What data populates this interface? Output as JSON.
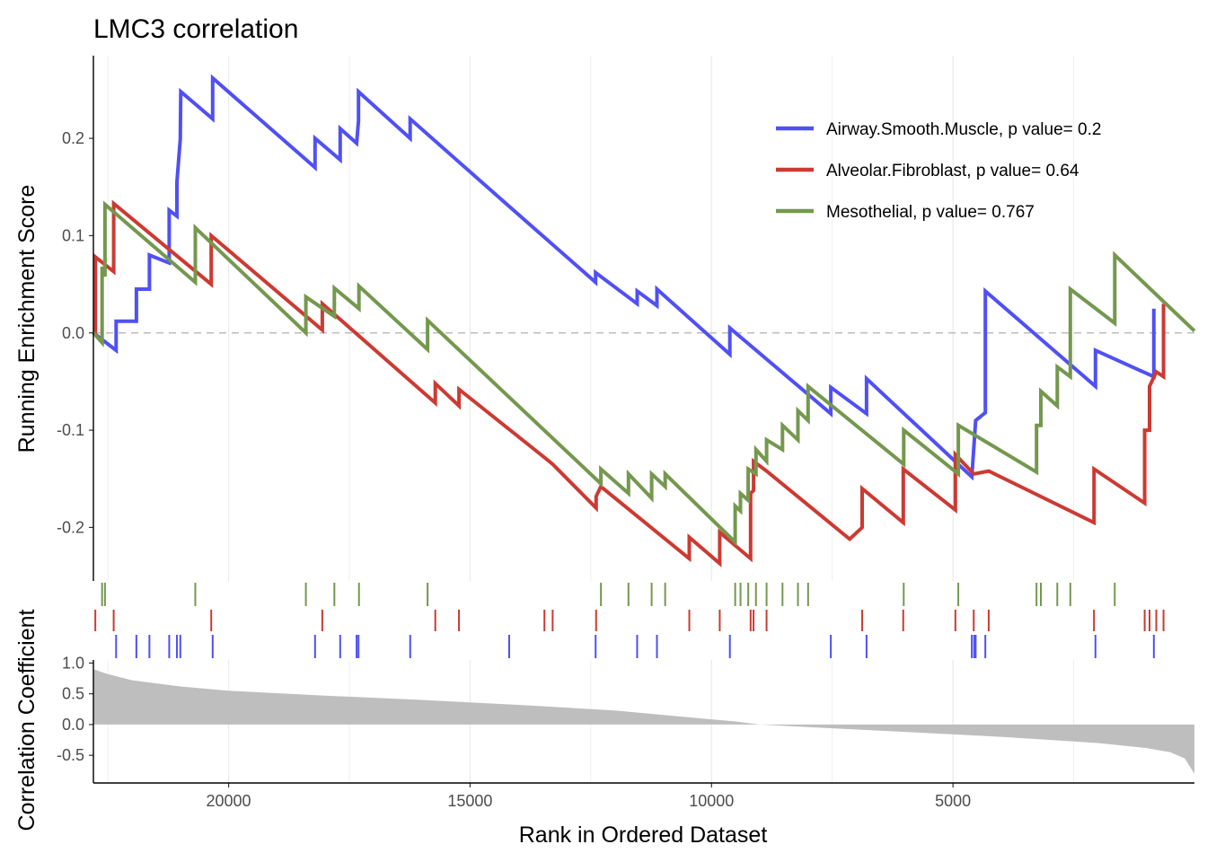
{
  "chart_data": {
    "type": "line",
    "title": "LMC3 correlation",
    "xlabel": "Rank in Ordered Dataset",
    "ylabel": "Running Enrichment Score",
    "ylabel2": "Correlation Coefficient",
    "xlim": [
      22800,
      0
    ],
    "ylim": [
      -0.255,
      0.285
    ],
    "ylim2": [
      -0.95,
      1.05
    ],
    "x_ticks": [
      {
        "value": 20000,
        "label": "20000"
      },
      {
        "value": 15000,
        "label": "15000"
      },
      {
        "value": 10000,
        "label": "10000"
      },
      {
        "value": 5000,
        "label": "5000"
      }
    ],
    "y_ticks": [
      {
        "value": 0.2,
        "label": "0.2"
      },
      {
        "value": 0.1,
        "label": "0.1"
      },
      {
        "value": 0.0,
        "label": "0.0"
      },
      {
        "value": -0.1,
        "label": "-0.1"
      },
      {
        "value": -0.2,
        "label": "-0.2"
      }
    ],
    "y2_ticks": [
      {
        "value": 1.0,
        "label": "1.0"
      },
      {
        "value": 0.5,
        "label": "0.5"
      },
      {
        "value": 0.0,
        "label": "0.0"
      },
      {
        "value": -0.5,
        "label": "-0.5"
      }
    ],
    "grid": true,
    "legend_position": "top-right",
    "zero_line": 0,
    "series": [
      {
        "name": "Airway.Smooth.Muscle, p value= 0.2",
        "color": "#5050F5",
        "hits": [
          22330,
          21910,
          21640,
          21230,
          21070,
          21000,
          20330,
          18210,
          17690,
          17350,
          17310,
          16240,
          14190,
          12400,
          11540,
          11130,
          9620,
          7530,
          6790,
          4610,
          4560,
          4530,
          4330,
          2050,
          840
        ],
        "values": [
          [
            22800,
            0
          ],
          [
            22330,
            -0.018
          ],
          [
            22330,
            0.012
          ],
          [
            21910,
            0.012
          ],
          [
            21910,
            0.045
          ],
          [
            21640,
            0.045
          ],
          [
            21640,
            0.08
          ],
          [
            21230,
            0.072
          ],
          [
            21230,
            0.126
          ],
          [
            21070,
            0.12
          ],
          [
            21070,
            0.155
          ],
          [
            21000,
            0.2
          ],
          [
            21000,
            0.205
          ],
          [
            20990,
            0.248
          ],
          [
            20330,
            0.22
          ],
          [
            20330,
            0.262
          ],
          [
            18210,
            0.17
          ],
          [
            18210,
            0.2
          ],
          [
            17690,
            0.178
          ],
          [
            17690,
            0.21
          ],
          [
            17350,
            0.195
          ],
          [
            17310,
            0.218
          ],
          [
            17310,
            0.248
          ],
          [
            16240,
            0.2
          ],
          [
            16240,
            0.22
          ],
          [
            14190,
            0.13
          ],
          [
            12400,
            0.052
          ],
          [
            12400,
            0.062
          ],
          [
            11540,
            0.03
          ],
          [
            11540,
            0.043
          ],
          [
            11130,
            0.028
          ],
          [
            11130,
            0.045
          ],
          [
            9620,
            -0.022
          ],
          [
            9620,
            0.005
          ],
          [
            7530,
            -0.083
          ],
          [
            7530,
            -0.056
          ],
          [
            6790,
            -0.083
          ],
          [
            6790,
            -0.047
          ],
          [
            4610,
            -0.148
          ],
          [
            4560,
            -0.112
          ],
          [
            4530,
            -0.09
          ],
          [
            4330,
            -0.082
          ],
          [
            4330,
            0.043
          ],
          [
            2050,
            -0.055
          ],
          [
            2050,
            -0.018
          ],
          [
            840,
            -0.045
          ],
          [
            840,
            0.025
          ]
        ]
      },
      {
        "name": "Alveolar.Fibroblast, p value= 0.64",
        "color": "#CC3A32",
        "hits": [
          22760,
          22380,
          20360,
          18060,
          15720,
          15230,
          13460,
          13290,
          12390,
          10460,
          9830,
          9190,
          9130,
          8860,
          6880,
          6030,
          4950,
          4570,
          4260,
          2080,
          1030,
          930,
          790,
          640
        ],
        "values": [
          [
            22800,
            0.0
          ],
          [
            22760,
            0.0
          ],
          [
            22760,
            0.078
          ],
          [
            22380,
            0.063
          ],
          [
            22380,
            0.133
          ],
          [
            20360,
            0.05
          ],
          [
            20360,
            0.1
          ],
          [
            18060,
            0.003
          ],
          [
            18060,
            0.03
          ],
          [
            15720,
            -0.072
          ],
          [
            15720,
            -0.052
          ],
          [
            15230,
            -0.075
          ],
          [
            15230,
            -0.058
          ],
          [
            13460,
            -0.128
          ],
          [
            13290,
            -0.135
          ],
          [
            12390,
            -0.18
          ],
          [
            12390,
            -0.168
          ],
          [
            12290,
            -0.158
          ],
          [
            10460,
            -0.232
          ],
          [
            10460,
            -0.21
          ],
          [
            9830,
            -0.237
          ],
          [
            9830,
            -0.205
          ],
          [
            9190,
            -0.232
          ],
          [
            9190,
            -0.165
          ],
          [
            9130,
            -0.162
          ],
          [
            9130,
            -0.132
          ],
          [
            8860,
            -0.142
          ],
          [
            7140,
            -0.212
          ],
          [
            6880,
            -0.2
          ],
          [
            6880,
            -0.16
          ],
          [
            6030,
            -0.195
          ],
          [
            6030,
            -0.14
          ],
          [
            4950,
            -0.182
          ],
          [
            4950,
            -0.125
          ],
          [
            4570,
            -0.145
          ],
          [
            4260,
            -0.142
          ],
          [
            2080,
            -0.195
          ],
          [
            2080,
            -0.14
          ],
          [
            1030,
            -0.175
          ],
          [
            1030,
            -0.1
          ],
          [
            930,
            -0.1
          ],
          [
            930,
            -0.055
          ],
          [
            790,
            -0.04
          ],
          [
            640,
            -0.045
          ],
          [
            640,
            0.03
          ]
        ]
      },
      {
        "name": "Mesothelial, p value= 0.767",
        "color": "#74984E",
        "hits": [
          22620,
          22560,
          20690,
          18400,
          17810,
          17300,
          15880,
          12290,
          11720,
          11240,
          10960,
          9510,
          9400,
          9240,
          9080,
          8860,
          8530,
          8210,
          8000,
          6020,
          4890,
          3270,
          3180,
          2840,
          2570,
          1650
        ],
        "values": [
          [
            22800,
            0.0
          ],
          [
            22620,
            -0.01
          ],
          [
            22620,
            0.068
          ],
          [
            22560,
            0.058
          ],
          [
            22560,
            0.132
          ],
          [
            20690,
            0.052
          ],
          [
            20690,
            0.108
          ],
          [
            18400,
            0.0
          ],
          [
            18400,
            0.037
          ],
          [
            17810,
            0.017
          ],
          [
            17810,
            0.046
          ],
          [
            17300,
            0.025
          ],
          [
            17300,
            0.048
          ],
          [
            15880,
            -0.017
          ],
          [
            15880,
            0.013
          ],
          [
            12290,
            -0.155
          ],
          [
            12290,
            -0.14
          ],
          [
            11720,
            -0.165
          ],
          [
            11720,
            -0.145
          ],
          [
            11240,
            -0.17
          ],
          [
            11240,
            -0.145
          ],
          [
            10960,
            -0.158
          ],
          [
            10960,
            -0.145
          ],
          [
            9510,
            -0.215
          ],
          [
            9510,
            -0.178
          ],
          [
            9400,
            -0.183
          ],
          [
            9400,
            -0.165
          ],
          [
            9240,
            -0.172
          ],
          [
            9240,
            -0.14
          ],
          [
            9080,
            -0.145
          ],
          [
            9080,
            -0.12
          ],
          [
            8860,
            -0.132
          ],
          [
            8860,
            -0.11
          ],
          [
            8530,
            -0.12
          ],
          [
            8530,
            -0.095
          ],
          [
            8210,
            -0.11
          ],
          [
            8210,
            -0.08
          ],
          [
            8000,
            -0.09
          ],
          [
            8000,
            -0.055
          ],
          [
            6020,
            -0.135
          ],
          [
            6020,
            -0.1
          ],
          [
            4890,
            -0.145
          ],
          [
            4890,
            -0.095
          ],
          [
            3270,
            -0.143
          ],
          [
            3270,
            -0.095
          ],
          [
            3180,
            -0.095
          ],
          [
            3180,
            -0.06
          ],
          [
            2840,
            -0.075
          ],
          [
            2840,
            -0.035
          ],
          [
            2570,
            -0.045
          ],
          [
            2570,
            0.045
          ],
          [
            1650,
            0.01
          ],
          [
            1650,
            0.08
          ],
          [
            0,
            0.002
          ]
        ]
      }
    ],
    "correlation": {
      "fill": "#BEBEBE",
      "values": [
        [
          22800,
          0.9
        ],
        [
          22500,
          0.82
        ],
        [
          22000,
          0.72
        ],
        [
          21000,
          0.62
        ],
        [
          20000,
          0.55
        ],
        [
          18000,
          0.47
        ],
        [
          16000,
          0.4
        ],
        [
          14000,
          0.32
        ],
        [
          12000,
          0.23
        ],
        [
          10500,
          0.12
        ],
        [
          9500,
          0.05
        ],
        [
          9000,
          0.0
        ],
        [
          8000,
          -0.04
        ],
        [
          6000,
          -0.12
        ],
        [
          4000,
          -0.2
        ],
        [
          2000,
          -0.3
        ],
        [
          1000,
          -0.38
        ],
        [
          500,
          -0.45
        ],
        [
          200,
          -0.55
        ],
        [
          0,
          -0.8
        ]
      ]
    }
  }
}
